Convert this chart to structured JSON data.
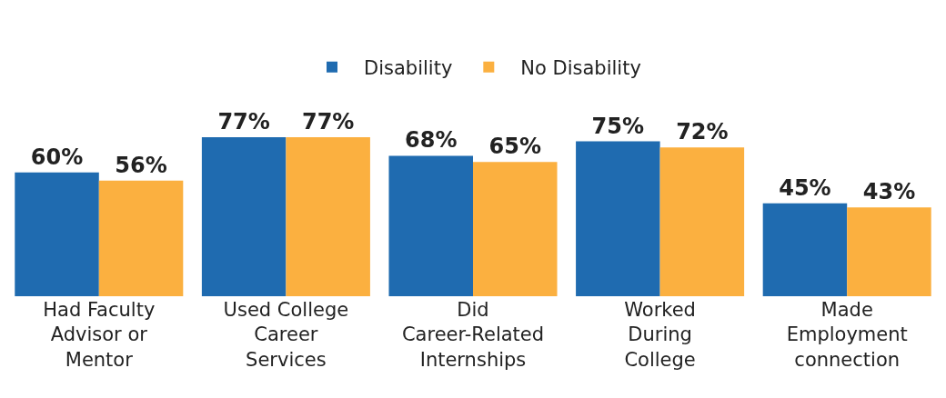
{
  "chart_data": {
    "type": "bar",
    "categories": [
      "Had Faculty Advisor or Mentor",
      "Used College Career Services",
      "Did Career-Related Internships",
      "Worked During College",
      "Made Employment connection"
    ],
    "series": [
      {
        "name": "Disability",
        "color": "#1f6bb0",
        "values": [
          60,
          77,
          68,
          75,
          45
        ],
        "value_labels": [
          "60%",
          "77%",
          "68%",
          "75%",
          "45%"
        ]
      },
      {
        "name": "No Disability",
        "color": "#fbb040",
        "values": [
          56,
          77,
          65,
          72,
          43
        ],
        "value_labels": [
          "56%",
          "77%",
          "65%",
          "72%",
          "43%"
        ]
      }
    ],
    "legend": "top"
  }
}
